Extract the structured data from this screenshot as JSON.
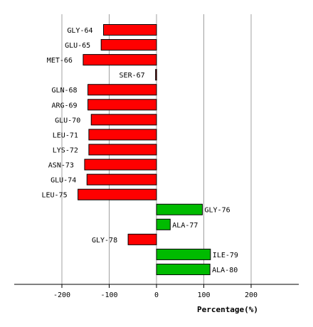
{
  "chart_data": {
    "type": "bar",
    "orientation": "horizontal",
    "title": "",
    "xlabel": "Percentage(%)",
    "ylabel": "",
    "xlim": [
      -300,
      300
    ],
    "xticks": [
      -200,
      -100,
      0,
      100,
      200
    ],
    "xtick_labels": [
      "-200",
      "-100",
      "0",
      "100",
      "200"
    ],
    "grid": "vertical gridlines at ticks",
    "categories": [
      "GLY-64",
      "GLU-65",
      "MET-66",
      "SER-67",
      "GLN-68",
      "ARG-69",
      "GLU-70",
      "LEU-71",
      "LYS-72",
      "ASN-73",
      "GLU-74",
      "LEU-75",
      "GLY-76",
      "ALA-77",
      "GLY-78",
      "ILE-79",
      "ALA-80"
    ],
    "values": [
      -112,
      -117,
      -155,
      -2,
      -145,
      -145,
      -138,
      -143,
      -143,
      -152,
      -147,
      -166,
      97,
      29,
      -60,
      114,
      113
    ],
    "colors": {
      "positive": "#00bb00",
      "negative": "#ff0000",
      "small_negative": "#990000",
      "grid": "#a0a0a0",
      "axis": "#000000"
    }
  }
}
